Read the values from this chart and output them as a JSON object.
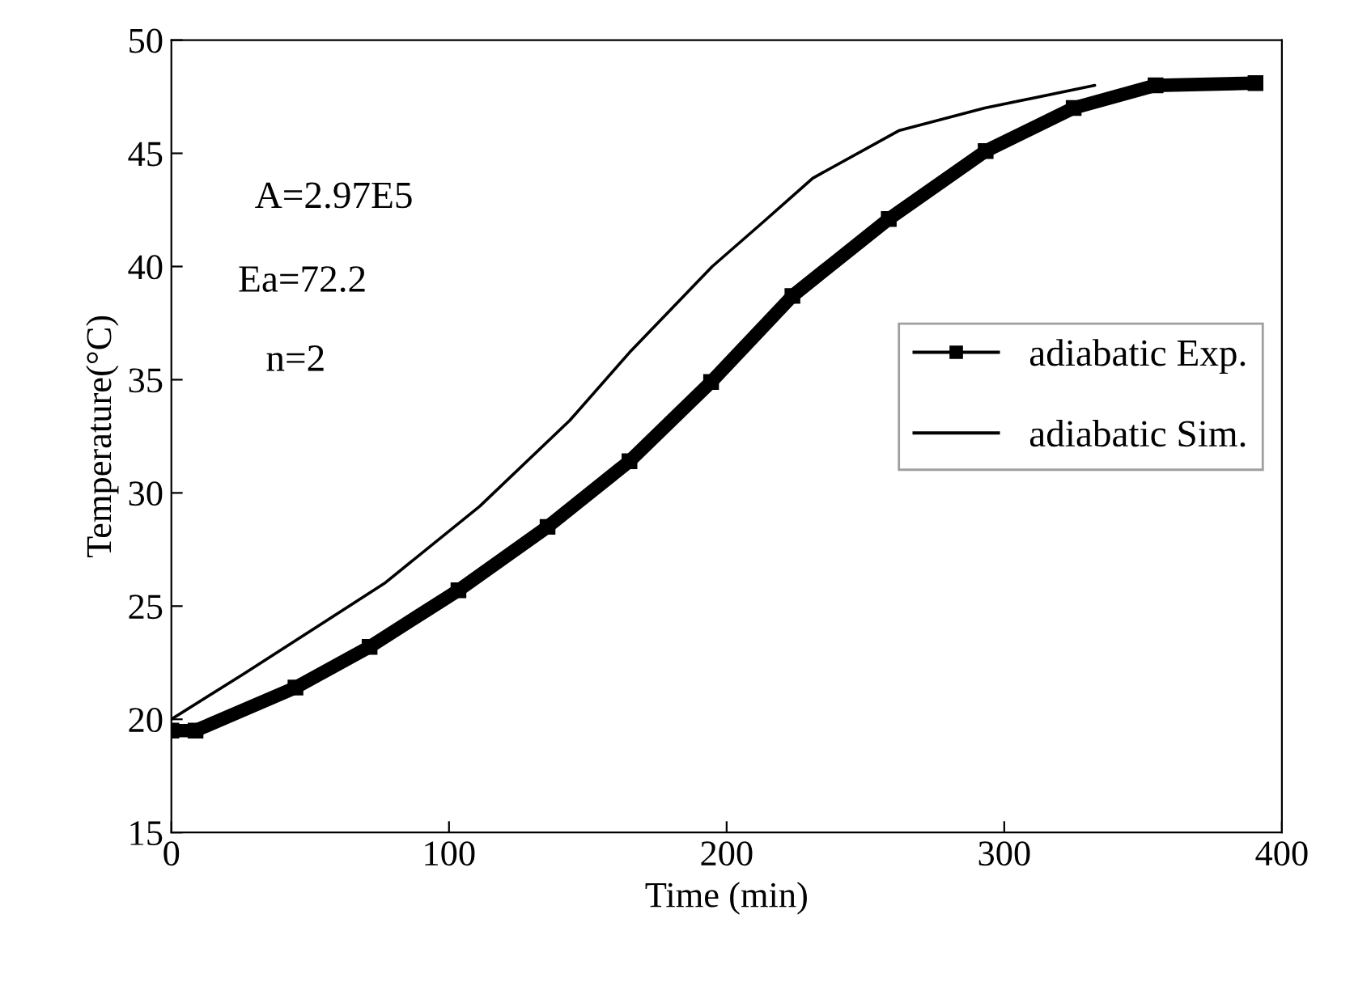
{
  "chart_data": {
    "type": "line",
    "xlabel": "Time (min)",
    "ylabel": "Temperature(°C)",
    "xlim": [
      0,
      400
    ],
    "xticks": [
      0,
      100,
      200,
      300,
      400
    ],
    "ylim": [
      15,
      50
    ],
    "yticks": [
      15,
      20,
      25,
      30,
      35,
      40,
      45,
      50
    ],
    "grid": false,
    "legend": "right",
    "annotations": [
      "A=2.97E5",
      "Ea=72.2",
      "n=2"
    ],
    "series": [
      {
        "name": "adiabatic Exp.",
        "color": "#000000",
        "marker": "square",
        "x": [
          0,
          8.7,
          44.7,
          71.4,
          103.4,
          135.5,
          165,
          194.4,
          223.7,
          258.4,
          293.3,
          325,
          354.5,
          390.5
        ],
        "values": [
          19.5,
          19.5,
          21.4,
          23.2,
          25.7,
          28.5,
          31.4,
          34.9,
          38.7,
          42.1,
          45.1,
          47.0,
          48.0,
          48.1
        ]
      },
      {
        "name": "adiabatic Sim.",
        "color": "#000000",
        "x": [
          0,
          26,
          76.7,
          111,
          143.5,
          165,
          194.8,
          213.5,
          231,
          262,
          293,
          332.6
        ],
        "values": [
          20.0,
          22.0,
          26.0,
          29.4,
          33.2,
          36.2,
          40.0,
          42.0,
          43.9,
          46.0,
          47.0,
          48.0
        ]
      }
    ]
  }
}
